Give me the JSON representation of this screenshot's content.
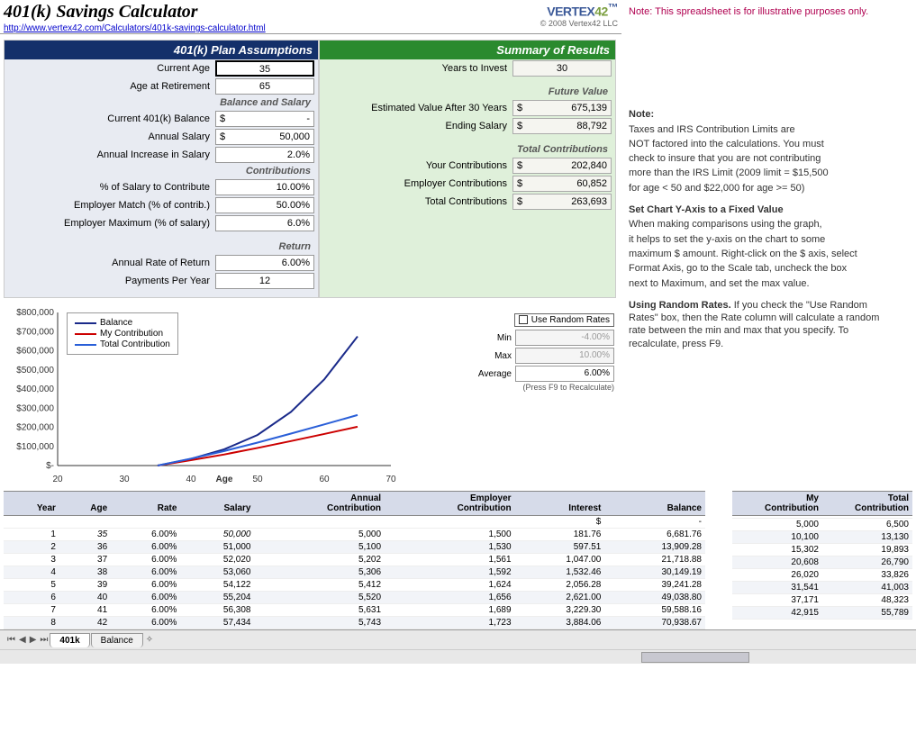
{
  "header": {
    "title": "401(k) Savings Calculator",
    "url": "http://www.vertex42.com/Calculators/401k-savings-calculator.html",
    "logo_a": "VERTEX",
    "logo_b": "42",
    "copyright": "© 2008 Vertex42 LLC"
  },
  "side": {
    "top_note": "Note: This spreadsheet is for illustrative purposes only.",
    "note_head": "Note:",
    "note_lines": [
      "Taxes and IRS Contribution Limits are",
      "NOT factored into the calculations. You must",
      "check to insure that you are not contributing",
      "more than the IRS Limit (2009 limit = $15,500",
      "for age < 50 and $22,000 for age >= 50)"
    ],
    "chart_head": "Set Chart Y-Axis to a Fixed Value",
    "chart_lines": [
      "When making comparisons using the graph,",
      "it helps to set the y-axis on the chart to some",
      "maximum $ amount. Right-click on the $ axis, select",
      "Format Axis, go to the Scale tab, uncheck the box",
      "next to Maximum, and set the max value."
    ],
    "rand_head": "Using Random Rates.",
    "rand_body": "  If you check the \"Use Random Rates\" box, then the Rate column will calculate a random rate between the min and max that you specify. To recalculate, press F9."
  },
  "assumptions": {
    "title": "401(k) Plan Assumptions",
    "current_age_lbl": "Current Age",
    "current_age": "35",
    "retire_age_lbl": "Age at Retirement",
    "retire_age": "65",
    "sh_balance": "Balance and Salary",
    "balance_lbl": "Current 401(k) Balance",
    "balance": "-",
    "salary_lbl": "Annual Salary",
    "salary": "50,000",
    "salary_inc_lbl": "Annual Increase in Salary",
    "salary_inc": "2.0%",
    "sh_contrib": "Contributions",
    "pct_contrib_lbl": "% of Salary to Contribute",
    "pct_contrib": "10.00%",
    "emp_match_lbl": "Employer Match (% of contrib.)",
    "emp_match": "50.00%",
    "emp_max_lbl": "Employer Maximum (% of salary)",
    "emp_max": "6.0%",
    "sh_return": "Return",
    "rate_lbl": "Annual Rate of Return",
    "rate": "6.00%",
    "ppy_lbl": "Payments Per Year",
    "ppy": "12"
  },
  "summary": {
    "title": "Summary of Results",
    "years_lbl": "Years to Invest",
    "years": "30",
    "sh_future": "Future Value",
    "est_lbl": "Estimated Value After 30 Years",
    "est": "675,139",
    "end_sal_lbl": "Ending Salary",
    "end_sal": "88,792",
    "sh_total": "Total Contributions",
    "your_lbl": "Your Contributions",
    "your": "202,840",
    "emp_lbl": "Employer Contributions",
    "emp": "60,852",
    "total_lbl": "Total Contributions",
    "total": "263,693"
  },
  "chart": {
    "y_ticks": [
      "$800,000",
      "$700,000",
      "$600,000",
      "$500,000",
      "$400,000",
      "$300,000",
      "$200,000",
      "$100,000",
      "$-"
    ],
    "x_ticks": [
      "20",
      "30",
      "40",
      "50",
      "60",
      "70"
    ],
    "x_label": "Age",
    "legend": [
      {
        "label": "Balance",
        "color": "#1a2a8a"
      },
      {
        "label": "My Contribution",
        "color": "#cc0000"
      },
      {
        "label": "Total Contribution",
        "color": "#2a5fd8"
      }
    ],
    "series": {
      "balance": {
        "color": "#1a2a8a",
        "pts": [
          [
            35,
            0
          ],
          [
            40,
            35
          ],
          [
            45,
            85
          ],
          [
            50,
            160
          ],
          [
            55,
            280
          ],
          [
            60,
            450
          ],
          [
            65,
            675
          ]
        ]
      },
      "my": {
        "color": "#cc0000",
        "pts": [
          [
            35,
            0
          ],
          [
            40,
            28
          ],
          [
            45,
            58
          ],
          [
            50,
            92
          ],
          [
            55,
            128
          ],
          [
            60,
            165
          ],
          [
            65,
            203
          ]
        ]
      },
      "total": {
        "color": "#2a5fd8",
        "pts": [
          [
            35,
            0
          ],
          [
            40,
            36
          ],
          [
            45,
            76
          ],
          [
            50,
            120
          ],
          [
            55,
            167
          ],
          [
            60,
            215
          ],
          [
            65,
            264
          ]
        ]
      }
    },
    "x_domain": [
      20,
      70
    ],
    "y_domain": [
      0,
      800
    ]
  },
  "random": {
    "checkbox_label": "Use Random Rates",
    "min_lbl": "Min",
    "min": "-4.00%",
    "max_lbl": "Max",
    "max": "10.00%",
    "avg_lbl": "Average",
    "avg": "6.00%",
    "hint": "(Press F9 to Recalculate)"
  },
  "tableA": {
    "headers": [
      "Year",
      "Age",
      "Rate",
      "Salary",
      "Annual\nContribution",
      "Employer\nContribution",
      "Interest",
      "Balance"
    ],
    "row0": [
      "",
      "",
      "",
      "",
      "",
      "",
      "$",
      "-"
    ],
    "rows": [
      [
        "1",
        "35",
        "6.00%",
        "50,000",
        "5,000",
        "1,500",
        "181.76",
        "6,681.76"
      ],
      [
        "2",
        "36",
        "6.00%",
        "51,000",
        "5,100",
        "1,530",
        "597.51",
        "13,909.28"
      ],
      [
        "3",
        "37",
        "6.00%",
        "52,020",
        "5,202",
        "1,561",
        "1,047.00",
        "21,718.88"
      ],
      [
        "4",
        "38",
        "6.00%",
        "53,060",
        "5,306",
        "1,592",
        "1,532.46",
        "30,149.19"
      ],
      [
        "5",
        "39",
        "6.00%",
        "54,122",
        "5,412",
        "1,624",
        "2,056.28",
        "39,241.28"
      ],
      [
        "6",
        "40",
        "6.00%",
        "55,204",
        "5,520",
        "1,656",
        "2,621.00",
        "49,038.80"
      ],
      [
        "7",
        "41",
        "6.00%",
        "56,308",
        "5,631",
        "1,689",
        "3,229.30",
        "59,588.16"
      ],
      [
        "8",
        "42",
        "6.00%",
        "57,434",
        "5,743",
        "1,723",
        "3,884.06",
        "70,938.67"
      ]
    ]
  },
  "tableB": {
    "headers": [
      "My\nContribution",
      "Total\nContribution"
    ],
    "rows": [
      [
        "5,000",
        "6,500"
      ],
      [
        "10,100",
        "13,130"
      ],
      [
        "15,302",
        "19,893"
      ],
      [
        "20,608",
        "26,790"
      ],
      [
        "26,020",
        "33,826"
      ],
      [
        "31,541",
        "41,003"
      ],
      [
        "37,171",
        "48,323"
      ],
      [
        "42,915",
        "55,789"
      ]
    ]
  },
  "tabs": {
    "active": "401k",
    "other": "Balance"
  }
}
